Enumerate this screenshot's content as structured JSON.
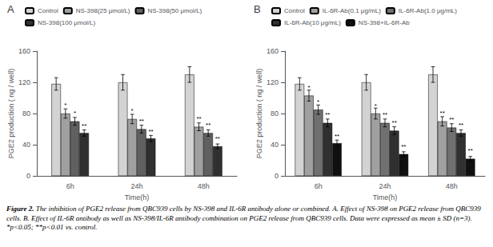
{
  "chart_data": [
    {
      "type": "bar",
      "title": "A",
      "x_label": "Time(h)",
      "y_label": "PGE2 production ( ng / well)",
      "categories": [
        "6h",
        "24h",
        "48h"
      ],
      "series": [
        {
          "name": "Control",
          "color": "#d3d3d3",
          "values": [
            118,
            120,
            130
          ],
          "errors": [
            8,
            10,
            10
          ]
        },
        {
          "name": "NS-398(25 μmol/L)",
          "color": "#a0a0a0",
          "values": [
            80,
            73,
            63
          ],
          "errors": [
            6,
            6,
            5
          ]
        },
        {
          "name": "NS-398(50 μmol/L)",
          "color": "#606060",
          "values": [
            70,
            60,
            55
          ],
          "errors": [
            5,
            5,
            4
          ]
        },
        {
          "name": "NS-398(100 μmol/L)",
          "color": "#303030",
          "values": [
            55,
            48,
            38
          ],
          "errors": [
            4,
            4,
            3
          ]
        }
      ],
      "annotations": [
        {
          "category": "6h",
          "series": "NS-398(25 μmol/L)",
          "text": "*",
          "y": 87
        },
        {
          "category": "6h",
          "series": "NS-398(50 μmol/L)",
          "text": "*",
          "y": 76
        },
        {
          "category": "6h",
          "series": "NS-398(100 μmol/L)",
          "text": "**",
          "y": 60
        },
        {
          "category": "24h",
          "series": "NS-398(25 μmol/L)",
          "text": "*",
          "y": 80
        },
        {
          "category": "24h",
          "series": "NS-398(50 μmol/L)",
          "text": "**",
          "y": 66
        },
        {
          "category": "24h",
          "series": "NS-398(100 μmol/L)",
          "text": "**",
          "y": 53
        },
        {
          "category": "48h",
          "series": "NS-398(25 μmol/L)",
          "text": "**",
          "y": 69
        },
        {
          "category": "48h",
          "series": "NS-398(50 μmol/L)",
          "text": "**",
          "y": 61
        },
        {
          "category": "48h",
          "series": "NS-398(100 μmol/L)",
          "text": "**",
          "y": 44
        }
      ],
      "ylim": [
        0,
        160
      ],
      "yticks": [
        0,
        40,
        80,
        120,
        160
      ],
      "grid": false,
      "legend": "top"
    },
    {
      "type": "bar",
      "title": "B",
      "x_label": "Time(h)",
      "y_label": "PGE2 production ( ng / well)",
      "categories": [
        "6h",
        "24h",
        "48h"
      ],
      "series": [
        {
          "name": "Control",
          "color": "#d3d3d3",
          "values": [
            118,
            120,
            130
          ],
          "errors": [
            8,
            10,
            10
          ]
        },
        {
          "name": "IL-6R-Ab(0.1 μg/mL)",
          "color": "#a0a0a0",
          "values": [
            103,
            80,
            70
          ],
          "errors": [
            7,
            7,
            6
          ]
        },
        {
          "name": "IL-6R-Ab(1.0 μg/mL)",
          "color": "#707070",
          "values": [
            85,
            68,
            62
          ],
          "errors": [
            6,
            5,
            5
          ]
        },
        {
          "name": "IL-6R-Ab(10 μg/mL)",
          "color": "#303030",
          "values": [
            68,
            58,
            55
          ],
          "errors": [
            5,
            5,
            4
          ]
        },
        {
          "name": "NS-398+IL-6R-Ab",
          "color": "#101010",
          "values": [
            42,
            28,
            22
          ],
          "errors": [
            4,
            3,
            3
          ]
        }
      ],
      "annotations": [
        {
          "category": "6h",
          "series": "IL-6R-Ab(0.1 μg/mL)",
          "text": "*",
          "y": 109
        },
        {
          "category": "6h",
          "series": "IL-6R-Ab(1.0 μg/mL)",
          "text": "*",
          "y": 91
        },
        {
          "category": "6h",
          "series": "IL-6R-Ab(10 μg/mL)",
          "text": "**",
          "y": 74
        },
        {
          "category": "6h",
          "series": "NS-398+IL-6R-Ab",
          "text": "**",
          "y": 47
        },
        {
          "category": "24h",
          "series": "IL-6R-Ab(0.1 μg/mL)",
          "text": "*",
          "y": 86
        },
        {
          "category": "24h",
          "series": "IL-6R-Ab(1.0 μg/mL)",
          "text": "**",
          "y": 74
        },
        {
          "category": "24h",
          "series": "IL-6R-Ab(10 μg/mL)",
          "text": "**",
          "y": 64
        },
        {
          "category": "24h",
          "series": "NS-398+IL-6R-Ab",
          "text": "**",
          "y": 33
        },
        {
          "category": "48h",
          "series": "IL-6R-Ab(0.1 μg/mL)",
          "text": "**",
          "y": 76
        },
        {
          "category": "48h",
          "series": "IL-6R-Ab(1.0 μg/mL)",
          "text": "**",
          "y": 68
        },
        {
          "category": "48h",
          "series": "IL-6R-Ab(10 μg/mL)",
          "text": "**",
          "y": 61
        },
        {
          "category": "48h",
          "series": "NS-398+IL-6R-Ab",
          "text": "**",
          "y": 28
        }
      ],
      "ylim": [
        0,
        160
      ],
      "yticks": [
        0,
        40,
        80,
        120,
        160
      ],
      "grid": false,
      "legend": "top"
    }
  ],
  "caption": {
    "bold": "Figure 2.",
    "text": "  The inhibition of PGE2 release from QBC939 cells by NS-398 and IL-6R antibody alone or combined. A. Effect of NS-398 on PGE2 release from QBC939 cells. B. Effect of IL-6R antibody as well as NS-398/IL-6R antibody combination on PGE2 release from QBC939 cells. Data were expressed as mean ± SD (n=3). *p<0.05; **p<0.01 vs. control."
  }
}
